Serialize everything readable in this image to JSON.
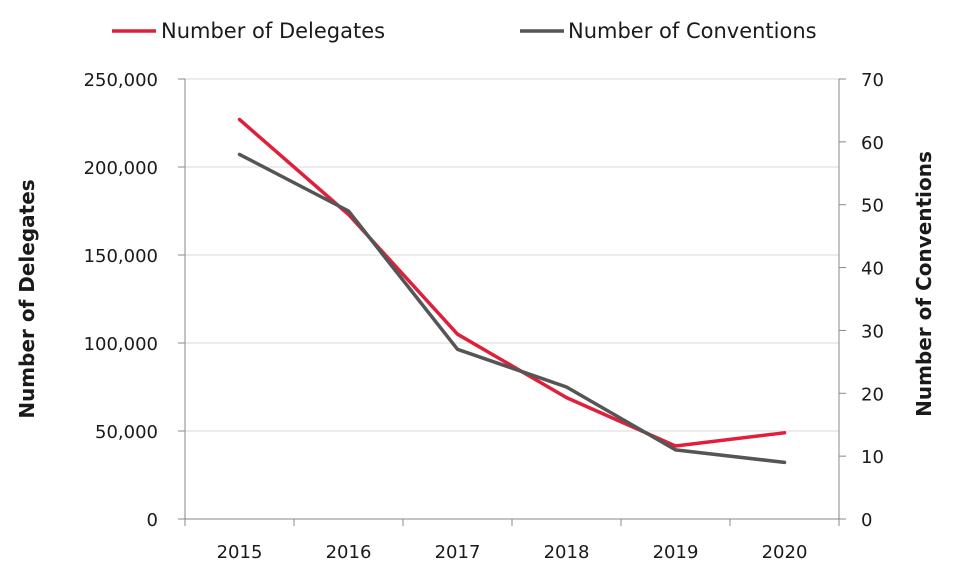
{
  "chart_data": {
    "type": "line",
    "categories": [
      "2015",
      "2016",
      "2017",
      "2018",
      "2019",
      "2020"
    ],
    "series": [
      {
        "name": "Number of Delegates",
        "axis": "left",
        "color": "#e0203a",
        "values": [
          227000,
          173000,
          105000,
          69000,
          41500,
          49000
        ]
      },
      {
        "name": "Number of Conventions",
        "axis": "right",
        "color": "#555555",
        "values": [
          58,
          49,
          27,
          21,
          11,
          9
        ]
      }
    ],
    "ylabel": "Number of Delegates",
    "y2label": "Number of Conventions",
    "ylim": [
      0,
      250000
    ],
    "y2lim": [
      0,
      70
    ],
    "yticks": [
      "0",
      "50,000",
      "100,000",
      "150,000",
      "200,000",
      "250,000"
    ],
    "y2ticks": [
      "0",
      "10",
      "20",
      "30",
      "40",
      "50",
      "60",
      "70"
    ],
    "grid": true,
    "legend_position": "top"
  }
}
